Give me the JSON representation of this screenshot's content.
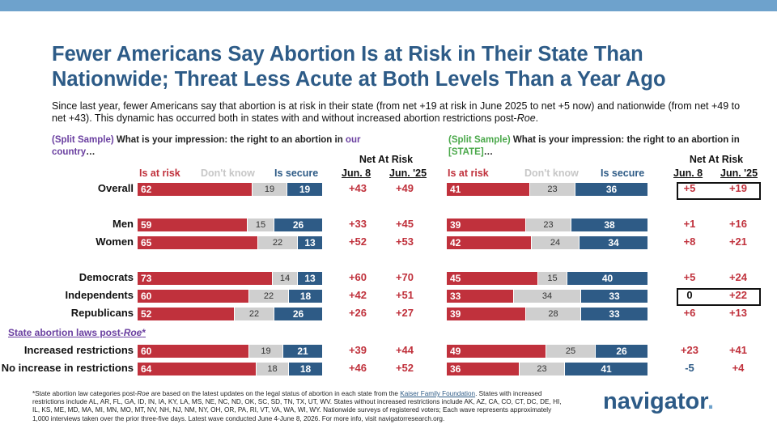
{
  "title": "Fewer Americans Say Abortion Is at Risk in Their State Than Nationwide; Threat Less Acute at Both Levels Than a Year Ago",
  "subtitle_main": "Since last year, fewer Americans say that abortion is at risk in their state (from net +19 at risk in June 2025 to net +5 now) and nationwide (from net +49 to net +43). This dynamic has occurred both in states with and without increased abortion restrictions post-",
  "subtitle_roe": "Roe",
  "subtitle_end": ".",
  "left_question": {
    "tag": "(Split Sample)",
    "text": " What is your impression: the right to an abortion in ",
    "highlight": "our country",
    "end": "…"
  },
  "right_question": {
    "tag": "(Split Sample)",
    "text": " What is your impression: the right to an abortion in ",
    "highlight": "[STATE]",
    "end": "…"
  },
  "col_headers": {
    "risk": "Is at risk",
    "dk": "Don't know",
    "secure": "Is secure"
  },
  "net_header": "Net At Risk",
  "net_cols": [
    "Jun. 8",
    "Jun. '25"
  ],
  "section_label": "State abortion laws post-",
  "section_label_roe": "Roe",
  "section_label_end": "*",
  "chart_data": [
    {
      "type": "bar",
      "stacked": true,
      "orientation": "horizontal",
      "title": "What is your impression: the right to an abortion in our country…",
      "categories": [
        "Overall",
        "Men",
        "Women",
        "Democrats",
        "Independents",
        "Republicans",
        "Increased restrictions",
        "No increase in restrictions"
      ],
      "series": [
        {
          "name": "Is at risk",
          "color": "#c0313c",
          "values": [
            62,
            59,
            65,
            73,
            60,
            52,
            60,
            64
          ]
        },
        {
          "name": "Don't know",
          "color": "#cfcfcf",
          "values": [
            19,
            15,
            22,
            14,
            22,
            22,
            19,
            18
          ]
        },
        {
          "name": "Is secure",
          "color": "#2e5b86",
          "values": [
            19,
            26,
            13,
            13,
            18,
            26,
            21,
            18
          ]
        }
      ],
      "net_at_risk": {
        "Jun. 8": [
          "+43",
          "+33",
          "+52",
          "+60",
          "+42",
          "+26",
          "+39",
          "+46"
        ],
        "Jun. '25": [
          "+49",
          "+45",
          "+53",
          "+70",
          "+51",
          "+27",
          "+44",
          "+52"
        ]
      },
      "xlim": [
        0,
        100
      ]
    },
    {
      "type": "bar",
      "stacked": true,
      "orientation": "horizontal",
      "title": "What is your impression: the right to an abortion in [STATE]…",
      "categories": [
        "Overall",
        "Men",
        "Women",
        "Democrats",
        "Independents",
        "Republicans",
        "Increased restrictions",
        "No increase in restrictions"
      ],
      "series": [
        {
          "name": "Is at risk",
          "color": "#c0313c",
          "values": [
            41,
            39,
            42,
            45,
            33,
            39,
            49,
            36
          ]
        },
        {
          "name": "Don't know",
          "color": "#cfcfcf",
          "values": [
            23,
            23,
            24,
            15,
            34,
            28,
            25,
            23
          ]
        },
        {
          "name": "Is secure",
          "color": "#2e5b86",
          "values": [
            36,
            38,
            34,
            40,
            33,
            33,
            26,
            41
          ]
        }
      ],
      "net_at_risk": {
        "Jun. 8": [
          "+5",
          "+1",
          "+8",
          "+5",
          "0",
          "+6",
          "+23",
          "-5"
        ],
        "Jun. '25": [
          "+19",
          "+16",
          "+21",
          "+24",
          "+22",
          "+13",
          "+41",
          "+4"
        ]
      },
      "xlim": [
        0,
        100
      ]
    }
  ],
  "footnote_a": "*State abortion law categories post-",
  "footnote_roe": "Roe",
  "footnote_b": " are based on the latest updates on the legal status of abortion in each state from the ",
  "footnote_link": "Kaiser Family Foundation",
  "footnote_c": ". States with increased restrictions include AL, AR, FL, GA, ID, IN, IA, KY, LA, MS, NE, NC, ND, OK, SC, SD, TN, TX, UT, WV. States without increased restrictions include AK, AZ, CA, CO, CT, DC, DE, HI, IL, KS, ME, MD, MA, MI, MN, MO, MT, NV, NH, NJ, NM, NY, OH, OR, PA, RI, VT, VA, WA, WI, WY. Nationwide surveys of registered voters; Each wave represents approximately 1,000 interviews taken over the prior three-five days. Latest wave conducted June 4-June 8, 2026. For more info, visit navigatorresearch.org.",
  "logo_text": "navigator",
  "logo_dot": "."
}
